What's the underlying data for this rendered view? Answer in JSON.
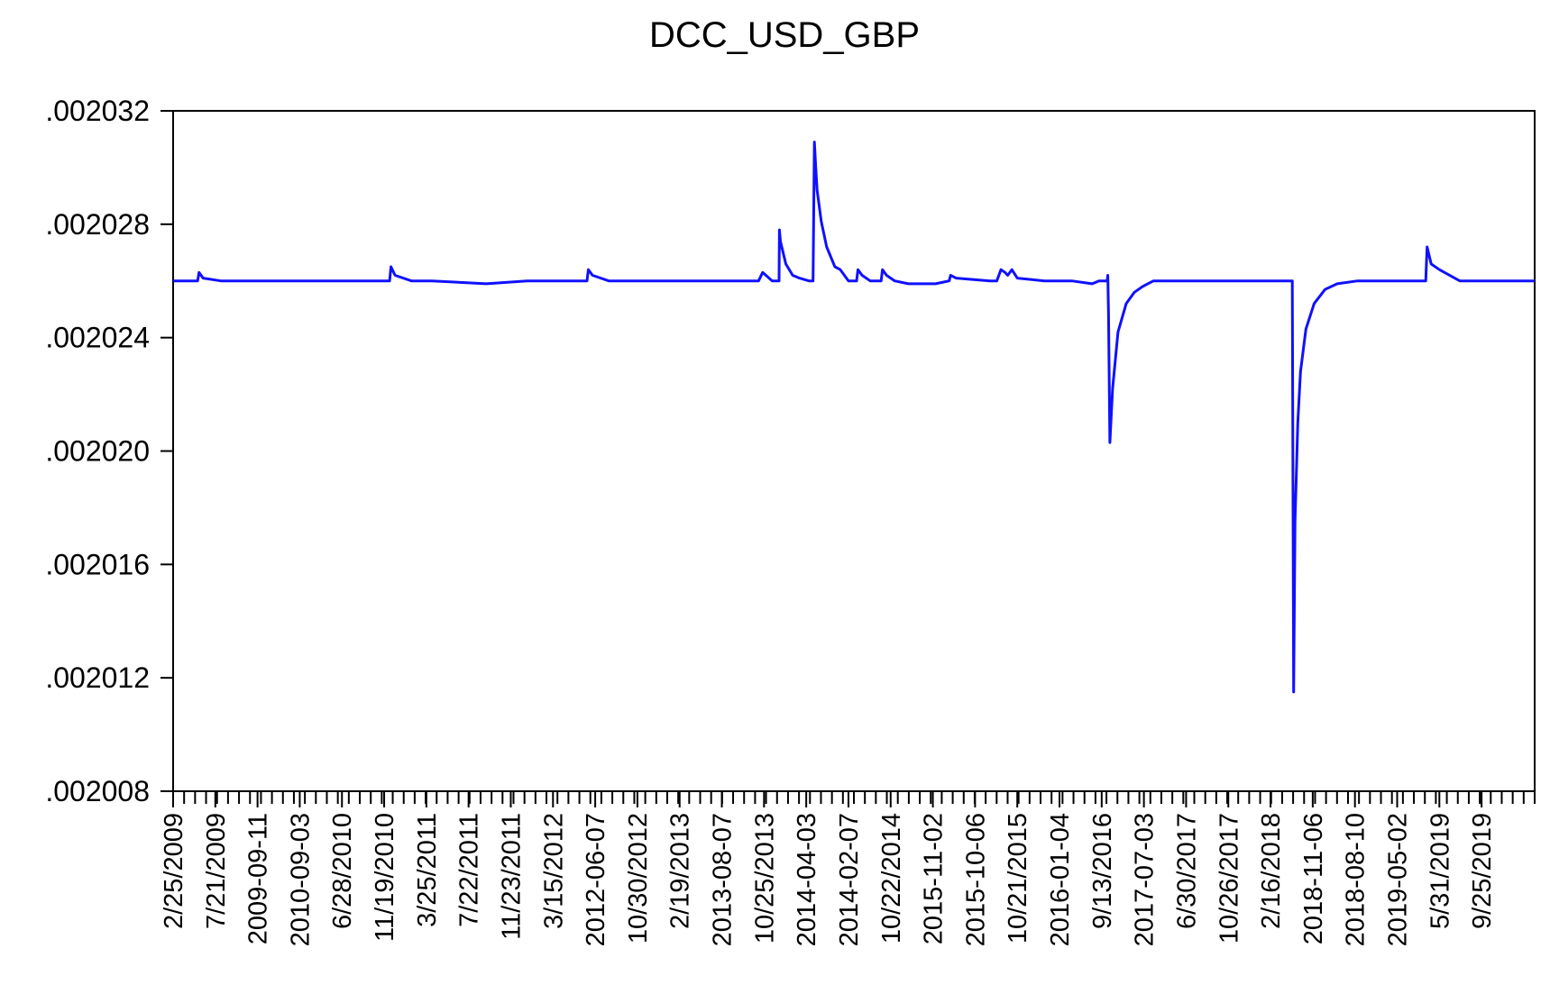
{
  "chart_data": {
    "type": "line",
    "title": "DCC_USD_GBP",
    "xlabel": "",
    "ylabel": "",
    "ylim": [
      0.002008,
      0.002032
    ],
    "y_ticks": [
      ".002032",
      ".002028",
      ".002024",
      ".002020",
      ".002016",
      ".002012",
      ".002008"
    ],
    "y_tick_values": [
      0.002032,
      0.002028,
      0.002024,
      0.00202,
      0.002016,
      0.002012,
      0.002008
    ],
    "x_tick_labels": [
      "2/25/2009",
      "7/21/2009",
      "2009-09-11",
      "2010-09-03",
      "6/28/2010",
      "11/19/2010",
      "3/25/2011",
      "7/22/2011",
      "11/23/2011",
      "3/15/2012",
      "2012-06-07",
      "10/30/2012",
      "2/19/2013",
      "2013-08-07",
      "10/25/2013",
      "2014-04-03",
      "2014-02-07",
      "10/22/2014",
      "2015-11-02",
      "2015-10-06",
      "10/21/2015",
      "2016-01-04",
      "9/13/2016",
      "2017-07-03",
      "6/30/2017",
      "10/26/2017",
      "2/16/2018",
      "2018-11-06",
      "2018-08-10",
      "2019-05-02",
      "5/31/2019",
      "9/25/2019"
    ],
    "x_range": [
      0,
      1000
    ],
    "x_tick_positions": [
      0,
      31,
      62,
      93,
      124,
      155,
      186,
      217,
      248,
      279,
      310,
      341,
      372,
      403,
      434,
      465,
      496,
      527,
      558,
      589,
      620,
      651,
      682,
      713,
      744,
      775,
      806,
      837,
      868,
      899,
      930,
      961
    ],
    "grid": false,
    "legend": "none",
    "colors": {
      "line": "#1010ff",
      "axes": "#000000"
    },
    "series": [
      {
        "x": [
          0,
          18,
          19,
          22,
          35,
          80,
          110,
          150,
          159,
          160,
          163,
          175,
          190,
          230,
          260,
          270,
          280,
          300,
          304,
          305,
          308,
          320,
          350,
          380,
          420,
          430,
          433,
          440,
          445,
          445.3,
          446,
          450,
          455,
          460,
          467,
          470,
          471,
          472,
          473,
          476,
          480,
          486,
          490,
          496,
          502,
          503,
          506,
          512,
          520,
          521,
          524,
          530,
          540,
          560,
          570,
          571,
          575,
          600,
          605,
          608,
          611,
          613,
          616,
          620,
          640,
          660,
          675,
          680,
          684,
          686,
          686.5,
          687,
          688,
          690,
          694,
          700,
          706,
          712,
          720,
          750,
          780,
          810,
          822,
          822.4,
          823,
          824,
          826,
          828,
          832,
          838,
          846,
          855,
          870,
          900,
          920,
          921,
          924,
          930,
          945,
          1000
        ],
        "y": [
          0.002026,
          0.002026,
          0.0020263,
          0.0020261,
          0.002026,
          0.002026,
          0.002026,
          0.002026,
          0.002026,
          0.0020265,
          0.0020262,
          0.002026,
          0.002026,
          0.0020259,
          0.002026,
          0.002026,
          0.002026,
          0.002026,
          0.002026,
          0.0020264,
          0.0020262,
          0.002026,
          0.002026,
          0.002026,
          0.002026,
          0.002026,
          0.0020263,
          0.002026,
          0.002026,
          0.0020278,
          0.0020274,
          0.0020266,
          0.0020262,
          0.0020261,
          0.002026,
          0.002026,
          0.0020309,
          0.00203,
          0.0020292,
          0.0020281,
          0.0020272,
          0.0020265,
          0.0020264,
          0.002026,
          0.002026,
          0.0020264,
          0.0020262,
          0.002026,
          0.002026,
          0.0020264,
          0.0020262,
          0.002026,
          0.0020259,
          0.0020259,
          0.002026,
          0.0020262,
          0.0020261,
          0.002026,
          0.002026,
          0.0020264,
          0.0020263,
          0.0020262,
          0.0020264,
          0.0020261,
          0.002026,
          0.002026,
          0.0020259,
          0.002026,
          0.002026,
          0.002026,
          0.0020262,
          0.0020248,
          0.0020203,
          0.0020222,
          0.0020242,
          0.0020252,
          0.0020256,
          0.0020258,
          0.002026,
          0.002026,
          0.002026,
          0.002026,
          0.002026,
          0.0020203,
          0.0020115,
          0.0020175,
          0.002021,
          0.0020228,
          0.0020243,
          0.0020252,
          0.0020257,
          0.0020259,
          0.002026,
          0.002026,
          0.002026,
          0.0020272,
          0.0020266,
          0.0020264,
          0.002026,
          0.002026
        ]
      }
    ]
  }
}
